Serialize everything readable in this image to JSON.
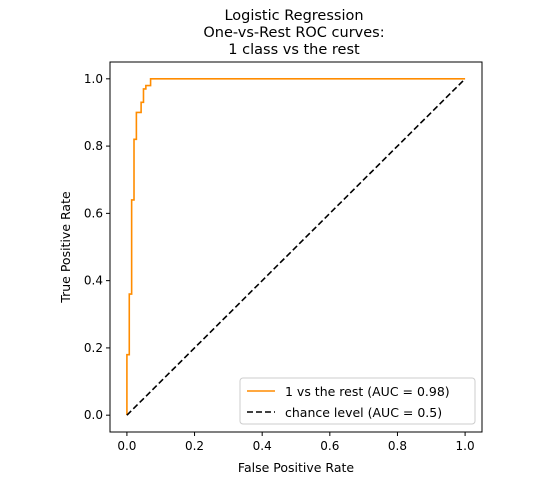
{
  "chart_data": {
    "type": "line",
    "title_lines": [
      "Logistic Regression",
      "One-vs-Rest ROC curves:",
      "1 class vs the rest"
    ],
    "xlabel": "False Positive Rate",
    "ylabel": "True Positive Rate",
    "xlim": [
      -0.05,
      1.05
    ],
    "ylim": [
      -0.05,
      1.05
    ],
    "xticks": [
      0.0,
      0.2,
      0.4,
      0.6,
      0.8,
      1.0
    ],
    "yticks": [
      0.0,
      0.2,
      0.4,
      0.6,
      0.8,
      1.0
    ],
    "xtick_labels": [
      "0.0",
      "0.2",
      "0.4",
      "0.6",
      "0.8",
      "1.0"
    ],
    "ytick_labels": [
      "0.0",
      "0.2",
      "0.4",
      "0.6",
      "0.8",
      "1.0"
    ],
    "grid": false,
    "legend_position": "lower-right",
    "series": [
      {
        "name": "1 vs the rest (AUC = 0.98)",
        "color": "#ff8c00",
        "dash": "solid",
        "x": [
          0.0,
          0.0,
          0.007,
          0.007,
          0.014,
          0.014,
          0.021,
          0.021,
          0.028,
          0.028,
          0.042,
          0.042,
          0.049,
          0.049,
          0.056,
          0.056,
          0.07,
          0.07,
          1.0
        ],
        "y": [
          0.0,
          0.18,
          0.18,
          0.36,
          0.36,
          0.64,
          0.64,
          0.82,
          0.82,
          0.9,
          0.9,
          0.93,
          0.93,
          0.97,
          0.97,
          0.98,
          0.98,
          1.0,
          1.0
        ]
      },
      {
        "name": "chance level (AUC = 0.5)",
        "color": "#000000",
        "dash": "dashed",
        "x": [
          0.0,
          1.0
        ],
        "y": [
          0.0,
          1.0
        ]
      }
    ]
  }
}
